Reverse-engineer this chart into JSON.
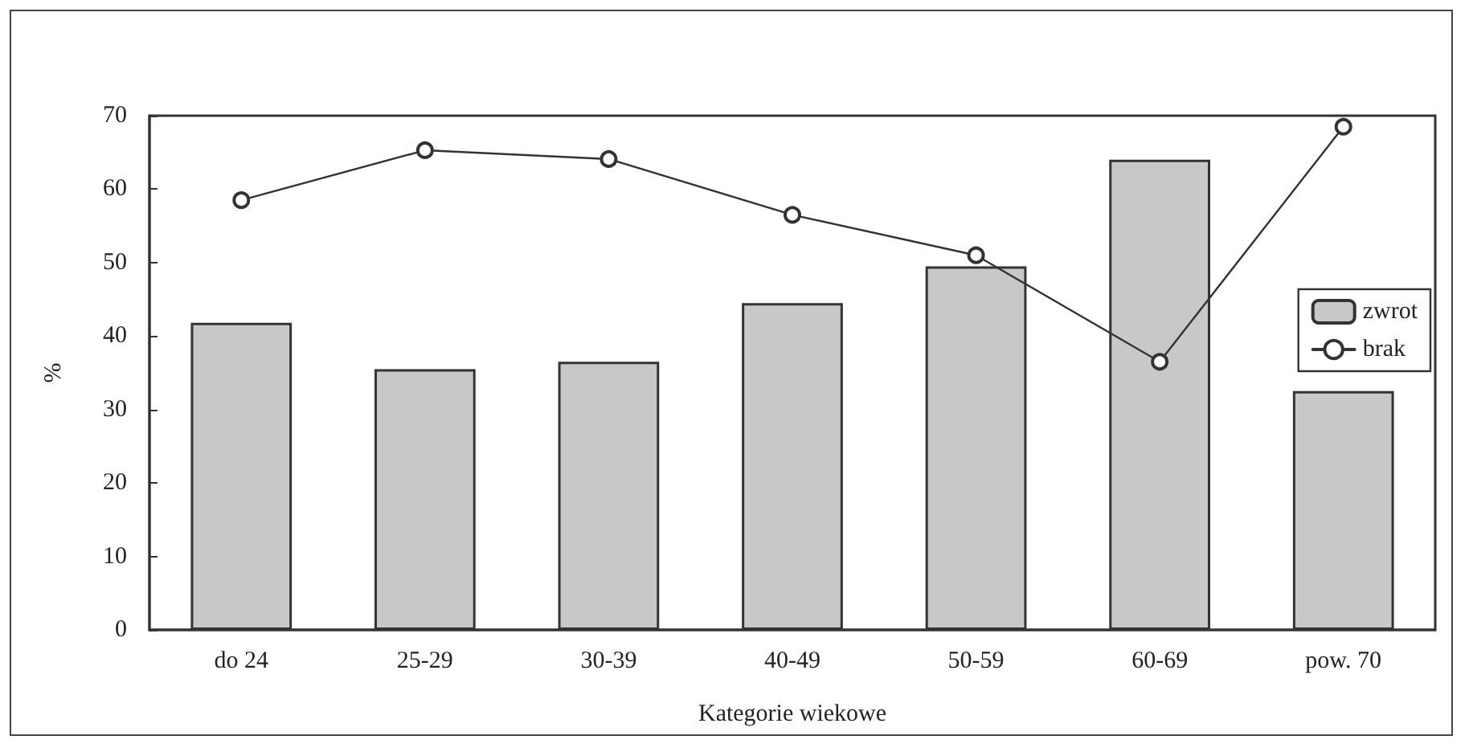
{
  "chart_data": {
    "type": "bar",
    "xlabel": "Kategorie wiekowe",
    "ylabel": "%",
    "categories": [
      "do 24",
      "25-29",
      "30-39",
      "40-49",
      "50-59",
      "60-69",
      "pow. 70"
    ],
    "series": [
      {
        "name": "zwrot",
        "color": "#c8c8c8",
        "values": [
          41.8,
          35.5,
          36.5,
          44.5,
          49.5,
          64,
          32.5
        ]
      },
      {
        "name": "brak",
        "type": "line",
        "color": "#333333",
        "values": [
          58.5,
          65.3,
          64.1,
          56.5,
          51,
          36.5,
          68.5
        ]
      }
    ],
    "ylim": [
      0,
      70
    ],
    "yticks": [
      0,
      10,
      20,
      30,
      40,
      50,
      60,
      70
    ],
    "grid": false,
    "legend": "right",
    "marker": "circle",
    "line_style": "solid"
  }
}
